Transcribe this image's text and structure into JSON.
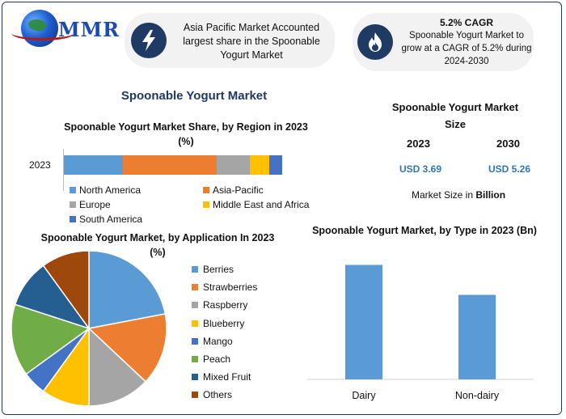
{
  "brand": {
    "logo_text": "MMR"
  },
  "callouts": {
    "region": "Asia Pacific Market Accounted largest share in the Spoonable Yogurt Market",
    "cagr_title": "5.2% CAGR",
    "cagr_text": "Spoonable Yogurt Market to grow at a CAGR of 5.2% during 2024-2030"
  },
  "main_title": "Spoonable Yogurt Market",
  "market_size": {
    "title": "Spoonable Yogurt Market Size",
    "year_a": "2023",
    "year_b": "2030",
    "value_a": "USD 3.69",
    "value_b": "USD 5.26",
    "note_prefix": "Market Size in",
    "note_unit": "Billion"
  },
  "colors": {
    "blue": "#5b9bd5",
    "orange": "#ed7d31",
    "gray": "#a5a5a5",
    "yellow": "#ffc000",
    "dark_blue": "#4472c4",
    "green": "#70ad47",
    "navy": "#255e91",
    "brown": "#9e480e",
    "icon_bg": "#1f3b63"
  },
  "icons": [
    "lightning-icon",
    "flame-icon"
  ],
  "chart_data": [
    {
      "type": "bar",
      "orientation": "horizontal-stacked",
      "title": "Spoonable Yogurt Market Share, by Region in 2023 (%)",
      "categories": [
        "2023"
      ],
      "series": [
        {
          "name": "North America",
          "values": [
            27
          ],
          "color": "#5b9bd5"
        },
        {
          "name": "Asia-Pacific",
          "values": [
            43
          ],
          "color": "#ed7d31"
        },
        {
          "name": "Europe",
          "values": [
            15
          ],
          "color": "#a5a5a5"
        },
        {
          "name": "Middle East and Africa",
          "values": [
            9
          ],
          "color": "#ffc000"
        },
        {
          "name": "South America",
          "values": [
            6
          ],
          "color": "#4472c4"
        }
      ],
      "legend": "bottom"
    },
    {
      "type": "pie",
      "title": "Spoonable Yogurt Market, by Application In 2023 (%)",
      "slices": [
        {
          "label": "Berries",
          "value": 22,
          "color": "#5b9bd5"
        },
        {
          "label": "Strawberries",
          "value": 15,
          "color": "#ed7d31"
        },
        {
          "label": "Raspberry",
          "value": 13,
          "color": "#a5a5a5"
        },
        {
          "label": "Blueberry",
          "value": 10,
          "color": "#ffc000"
        },
        {
          "label": "Mango",
          "value": 5,
          "color": "#4472c4"
        },
        {
          "label": "Peach",
          "value": 15,
          "color": "#70ad47"
        },
        {
          "label": "Mixed Fruit",
          "value": 10,
          "color": "#255e91"
        },
        {
          "label": "Others",
          "value": 10,
          "color": "#9e480e"
        }
      ],
      "legend": "right"
    },
    {
      "type": "bar",
      "title": "Spoonable Yogurt Market, by Type in 2023 (Bn)",
      "categories": [
        "Dairy",
        "Non-dairy"
      ],
      "values": [
        2.1,
        1.55
      ],
      "ylim": [
        0,
        2.3
      ],
      "color": "#5b9bd5",
      "grid": false
    }
  ]
}
